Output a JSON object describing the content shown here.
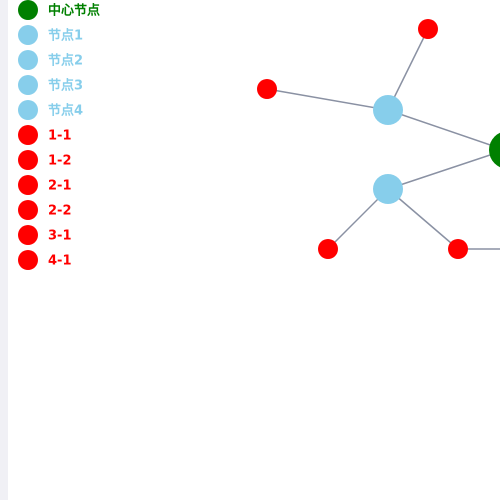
{
  "legend": {
    "items": [
      {
        "name": "中心节点",
        "color": "#008000"
      },
      {
        "name": "节点1",
        "color": "#87ceeb"
      },
      {
        "name": "节点2",
        "color": "#87ceeb"
      },
      {
        "name": "节点3",
        "color": "#87ceeb"
      },
      {
        "name": "节点4",
        "color": "#87ceeb"
      },
      {
        "name": "1-1",
        "color": "#ff0000"
      },
      {
        "name": "1-2",
        "color": "#ff0000"
      },
      {
        "name": "2-1",
        "color": "#ff0000"
      },
      {
        "name": "2-2",
        "color": "#ff0000"
      },
      {
        "name": "3-1",
        "color": "#ff0000"
      },
      {
        "name": "4-1",
        "color": "#ff0000"
      }
    ]
  }
}
